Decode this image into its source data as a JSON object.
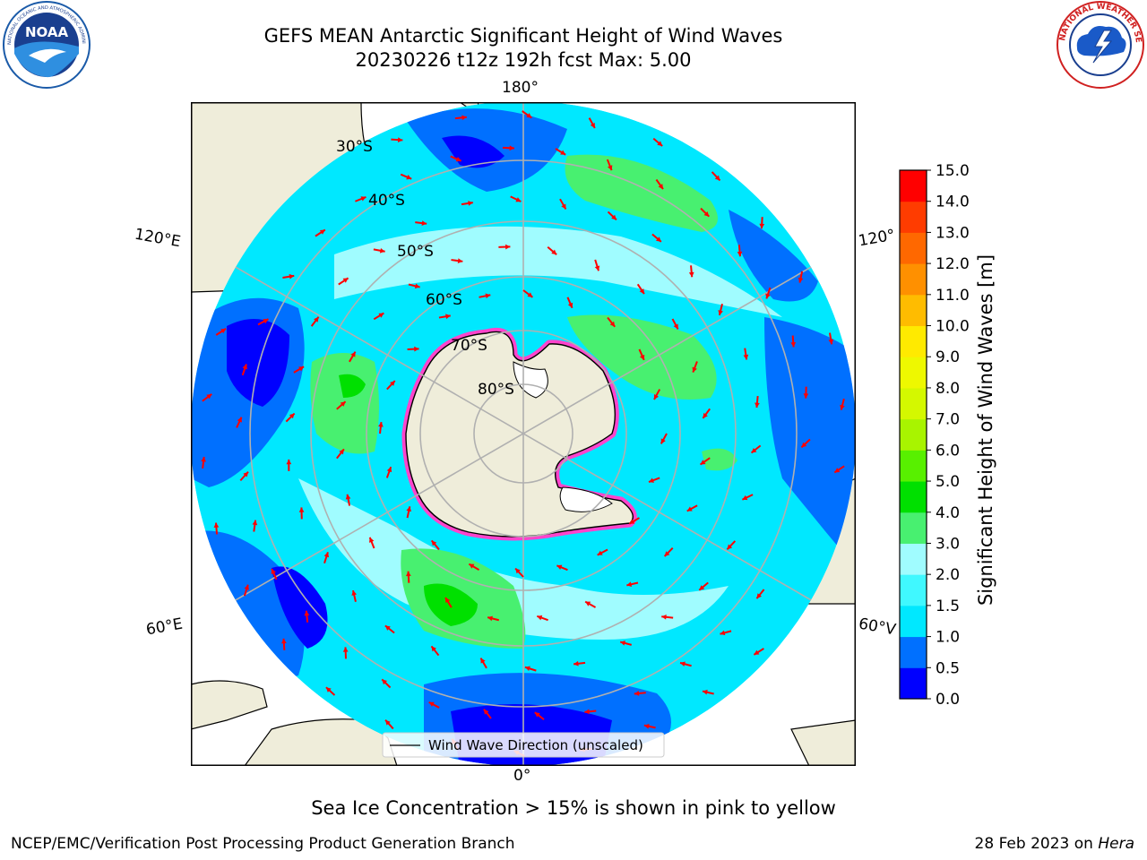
{
  "title": {
    "line1": "GEFS MEAN Antarctic Significant Height of Wind Waves",
    "line2": "20230226 t12z 192h fcst   Max: 5.00"
  },
  "logos": {
    "left": {
      "name": "noaa-logo",
      "text": "NOAA",
      "ring_text": "NATIONAL OCEANIC AND ATMOSPHERIC ADMINISTRATION · U.S. DEPARTMENT OF COMMERCE"
    },
    "right": {
      "name": "nws-logo",
      "ring_text": "NATIONAL WEATHER SERVICE"
    }
  },
  "map": {
    "projection": "south-polar-stereographic",
    "lon_labels": {
      "top": "180°",
      "bottom": "0°",
      "left_upper": "120°E",
      "left_lower": "60°E",
      "right_upper": "120°",
      "right_lower": "60°V"
    },
    "lat_labels": [
      "30°S",
      "40°S",
      "50°S",
      "60°S",
      "70°S",
      "80°S"
    ],
    "legend_label": "Wind Wave Direction (unscaled)",
    "colors": {
      "land": "#efedda",
      "ice_edge": "#ff44cc",
      "arrow": "#ff0000",
      "grid": "#b0b0b0"
    }
  },
  "colorbar": {
    "label": "Significant Height of Wind Waves [m]",
    "ticks": [
      "0.0",
      "0.5",
      "1.0",
      "1.5",
      "2.0",
      "3.0",
      "4.0",
      "5.0",
      "6.0",
      "7.0",
      "8.0",
      "9.0",
      "10.0",
      "11.0",
      "12.0",
      "13.0",
      "14.0",
      "15.0"
    ],
    "colors": [
      "#0000ff",
      "#0070ff",
      "#00e8ff",
      "#40f8ff",
      "#a0fcff",
      "#48f070",
      "#00e000",
      "#58f000",
      "#a8f400",
      "#d4f800",
      "#eef800",
      "#ffea00",
      "#ffbc00",
      "#ff9000",
      "#ff6800",
      "#ff3c00",
      "#ff0000"
    ]
  },
  "note": "Sea Ice Concentration > 15% is shown in pink to yellow",
  "footer": {
    "left": "NCEP/EMC/Verification Post Processing Product Generation Branch",
    "right_date": "28 Feb 2023 on ",
    "right_host": "Hera"
  }
}
